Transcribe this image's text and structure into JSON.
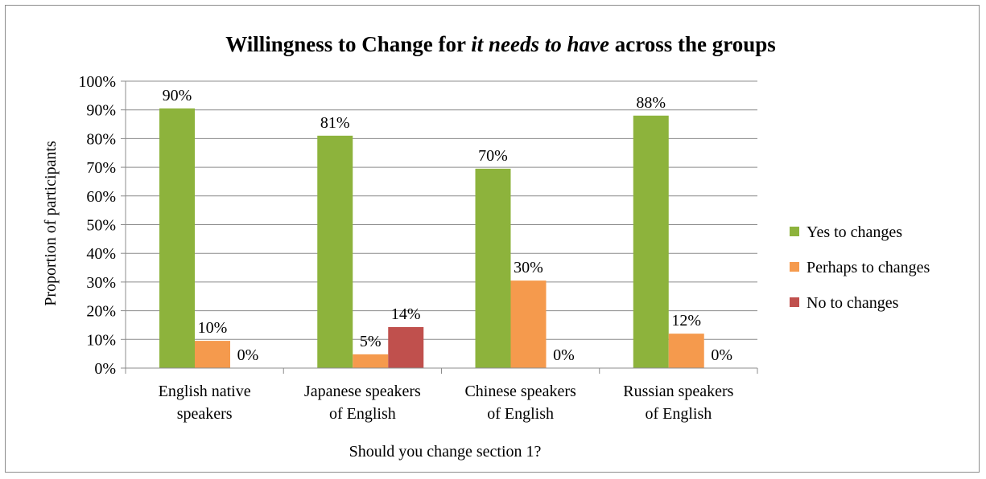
{
  "chart_data": {
    "type": "bar",
    "title": {
      "prefix": "Willingness to Change for ",
      "italic": "it needs to have",
      "suffix": " across the groups"
    },
    "xlabel": "Should you change section 1?",
    "ylabel": "Proportion of participants",
    "ylim": [
      0,
      100
    ],
    "yticks": [
      "0%",
      "10%",
      "20%",
      "30%",
      "40%",
      "50%",
      "60%",
      "70%",
      "80%",
      "90%",
      "100%"
    ],
    "categories": [
      [
        "English native",
        "speakers"
      ],
      [
        "Japanese speakers",
        "of English"
      ],
      [
        "Chinese speakers",
        "of English"
      ],
      [
        "Russian speakers",
        "of English"
      ]
    ],
    "series": [
      {
        "name": "Yes to changes",
        "color": "#8db33c",
        "values": [
          90.5,
          81,
          69.5,
          88
        ],
        "labels": [
          "90%",
          "81%",
          "70%",
          "88%"
        ]
      },
      {
        "name": "Perhaps to changes",
        "color": "#f59a4d",
        "values": [
          9.5,
          4.8,
          30.5,
          12
        ],
        "labels": [
          "10%",
          "5%",
          "30%",
          "12%"
        ]
      },
      {
        "name": "No to changes",
        "color": "#c0504d",
        "values": [
          0,
          14.3,
          0,
          0
        ],
        "labels": [
          "0%",
          "14%",
          "0%",
          "0%"
        ]
      }
    ],
    "grid": true,
    "legend_position": "right"
  }
}
